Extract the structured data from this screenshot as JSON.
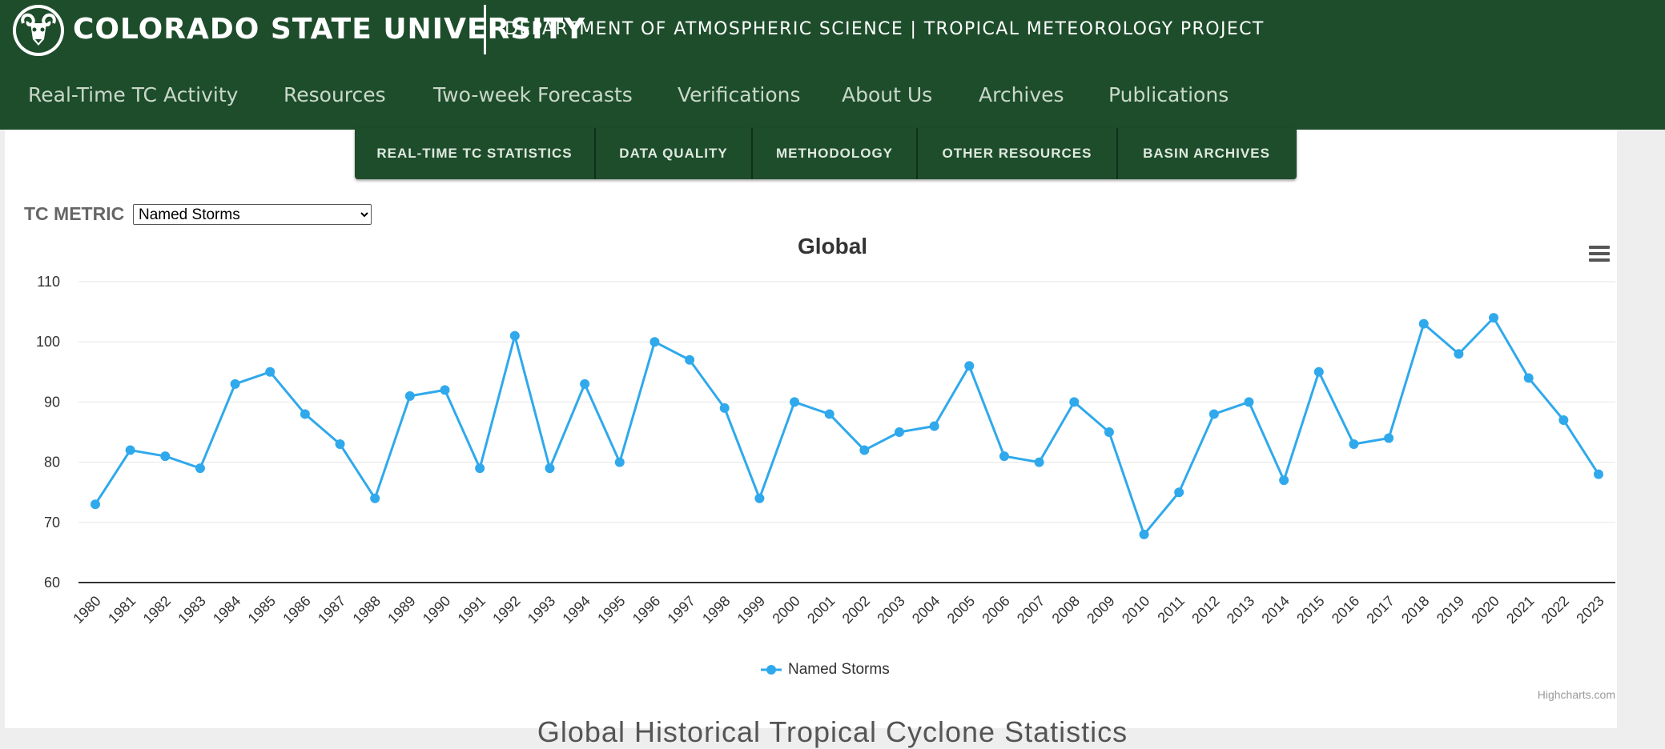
{
  "header": {
    "university": "COLORADO STATE UNIVERSITY",
    "department": "DEPARTMENT OF ATMOSPHERIC SCIENCE | TROPICAL METEOROLOGY PROJECT",
    "logo_icon": "csu-ram-logo-icon"
  },
  "main_nav": [
    "Real-Time TC Activity",
    "Resources",
    "Two-week Forecasts",
    "Verifications",
    "About Us",
    "Archives",
    "Publications"
  ],
  "sub_nav": [
    "REAL-TIME TC STATISTICS",
    "DATA QUALITY",
    "METHODOLOGY",
    "OTHER RESOURCES",
    "BASIN ARCHIVES"
  ],
  "metric": {
    "label": "TC METRIC",
    "selected": "Named Storms"
  },
  "chart_data": {
    "type": "line",
    "title": "Global",
    "x": [
      "1980",
      "1981",
      "1982",
      "1983",
      "1984",
      "1985",
      "1986",
      "1987",
      "1988",
      "1989",
      "1990",
      "1991",
      "1992",
      "1993",
      "1994",
      "1995",
      "1996",
      "1997",
      "1998",
      "1999",
      "2000",
      "2001",
      "2002",
      "2003",
      "2004",
      "2005",
      "2006",
      "2007",
      "2008",
      "2009",
      "2010",
      "2011",
      "2012",
      "2013",
      "2014",
      "2015",
      "2016",
      "2017",
      "2018",
      "2019",
      "2020",
      "2021",
      "2022",
      "2023"
    ],
    "series": [
      {
        "name": "Named Storms",
        "values": [
          73,
          82,
          81,
          79,
          93,
          95,
          88,
          83,
          74,
          91,
          92,
          79,
          101,
          79,
          93,
          80,
          100,
          97,
          89,
          74,
          90,
          88,
          82,
          85,
          86,
          96,
          81,
          80,
          90,
          85,
          68,
          75,
          88,
          90,
          77,
          95,
          83,
          84,
          103,
          98,
          104,
          94,
          87,
          78
        ]
      }
    ],
    "y_ticks": [
      60,
      70,
      80,
      90,
      100,
      110
    ],
    "ylim": [
      60,
      110
    ],
    "legend_position": "bottom-center",
    "color": "#2fa9ec",
    "grid": true
  },
  "chart_menu_icon": "hamburger-menu-icon",
  "credits": "Highcharts.com",
  "next_heading": "Global Historical Tropical Cyclone Statistics"
}
